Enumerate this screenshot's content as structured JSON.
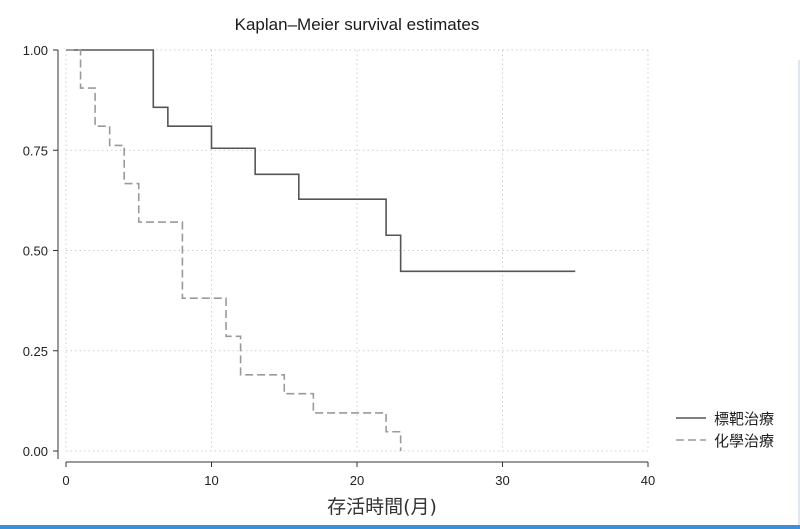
{
  "chart_data": {
    "type": "line",
    "title": "Kaplan–Meier survival estimates",
    "xlabel": "存活時間(月)",
    "ylabel": "",
    "xlim": [
      0,
      40
    ],
    "ylim": [
      0,
      1
    ],
    "x_ticks": [
      "0",
      "10",
      "20",
      "30",
      "40"
    ],
    "y_ticks": [
      "0.00",
      "0.25",
      "0.50",
      "0.75",
      "1.00"
    ],
    "x_tick_values": [
      0,
      10,
      20,
      30,
      40
    ],
    "y_tick_values": [
      0,
      0.25,
      0.5,
      0.75,
      1
    ],
    "grid": true,
    "legend_position": "right-bottom",
    "series": [
      {
        "name": "標靶治療",
        "style": "solid",
        "color": "#555555",
        "step_points": [
          [
            0,
            1.0
          ],
          [
            6,
            0.857
          ],
          [
            7,
            0.81
          ],
          [
            10,
            0.755
          ],
          [
            13,
            0.69
          ],
          [
            16,
            0.628
          ],
          [
            22,
            0.538
          ],
          [
            23,
            0.448
          ],
          [
            35,
            0.448
          ]
        ]
      },
      {
        "name": "化學治療",
        "style": "dashed",
        "color": "#9a9a9a",
        "step_points": [
          [
            0,
            1.0
          ],
          [
            1,
            0.905
          ],
          [
            2,
            0.81
          ],
          [
            3,
            0.762
          ],
          [
            4,
            0.667
          ],
          [
            5,
            0.571
          ],
          [
            8,
            0.381
          ],
          [
            11,
            0.286
          ],
          [
            12,
            0.19
          ],
          [
            15,
            0.143
          ],
          [
            17,
            0.095
          ],
          [
            22,
            0.048
          ],
          [
            23,
            0.0
          ]
        ]
      }
    ]
  }
}
